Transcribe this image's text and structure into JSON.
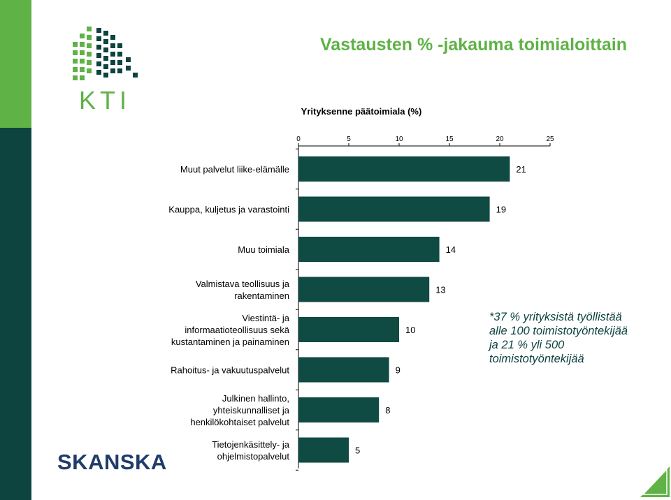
{
  "colors": {
    "brand_green": "#5fb246",
    "brand_dark": "#0d4440",
    "bar": "#0f4a43",
    "skanska_blue": "#1f3c6b"
  },
  "header": {
    "title": "Vastausten % -jakauma toimialoittain",
    "logo_text": "KTI",
    "logo_icon": "building-grid-icon"
  },
  "note": {
    "lines": [
      "*37 % yrityksistä työllistää",
      "alle 100 toimistotyöntekijää",
      "ja 21 % yli 500",
      "toimistotyöntekijää"
    ]
  },
  "footer": {
    "logo_text": "SKANSKA",
    "corner_icon": "triangle-corner-icon"
  },
  "chart_data": {
    "type": "bar",
    "orientation": "horizontal",
    "title": "Yrityksenne päätoimiala (%)",
    "xlim": [
      0,
      25
    ],
    "x_ticks": [
      0,
      5,
      10,
      15,
      20,
      25
    ],
    "x_axis_position": "top",
    "grid": false,
    "legend": "none",
    "categories": [
      [
        "Muut palvelut liike-elämälle"
      ],
      [
        "Kauppa, kuljetus ja varastointi"
      ],
      [
        "Muu toimiala"
      ],
      [
        "Valmistava teollisuus ja",
        "rakentaminen"
      ],
      [
        "Viestintä- ja",
        "informaatioteollisuus sekä",
        "kustantaminen ja painaminen"
      ],
      [
        "Rahoitus- ja vakuutuspalvelut"
      ],
      [
        "Julkinen hallinto,",
        "yhteiskunnalliset ja",
        "henkilökohtaiset palvelut"
      ],
      [
        "Tietojenkäsittely- ja",
        "ohjelmistopalvelut"
      ]
    ],
    "values": [
      21,
      19,
      14,
      13,
      10,
      9,
      8,
      5
    ]
  }
}
